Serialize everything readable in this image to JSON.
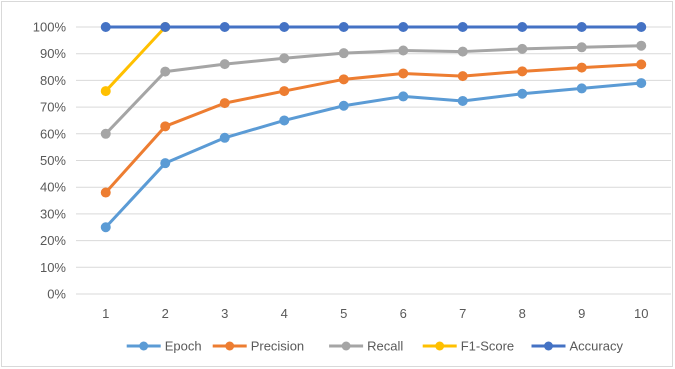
{
  "chart_data": {
    "type": "line",
    "title": "",
    "xlabel": "",
    "ylabel": "",
    "categories": [
      "1",
      "2",
      "3",
      "4",
      "5",
      "6",
      "7",
      "8",
      "9",
      "10"
    ],
    "y_ticks": [
      "0%",
      "10%",
      "20%",
      "30%",
      "40%",
      "50%",
      "60%",
      "70%",
      "80%",
      "90%",
      "100%"
    ],
    "ylim": [
      0,
      100
    ],
    "y_unit": "percent",
    "grid": "horizontal",
    "legend_position": "bottom",
    "series": [
      {
        "name": "Epoch",
        "color": "#5b9bd5",
        "values": [
          25,
          49,
          58.5,
          65,
          70.5,
          74,
          72.3,
          75,
          77,
          79
        ]
      },
      {
        "name": "Precision",
        "color": "#ed7d31",
        "values": [
          38,
          62.8,
          71.5,
          76,
          80.4,
          82.6,
          81.6,
          83.4,
          84.8,
          86
        ]
      },
      {
        "name": "Recall",
        "color": "#a5a5a5",
        "values": [
          60,
          83.3,
          86.1,
          88.3,
          90.2,
          91.2,
          90.8,
          91.8,
          92.4,
          93
        ]
      },
      {
        "name": "F1-Score",
        "color": "#ffc000",
        "values": [
          76,
          100,
          null,
          null,
          null,
          null,
          null,
          null,
          null,
          null
        ]
      },
      {
        "name": "Accuracy",
        "color": "#4472c4",
        "values": [
          100,
          100,
          100,
          100,
          100,
          100,
          100,
          100,
          100,
          100
        ]
      }
    ]
  }
}
